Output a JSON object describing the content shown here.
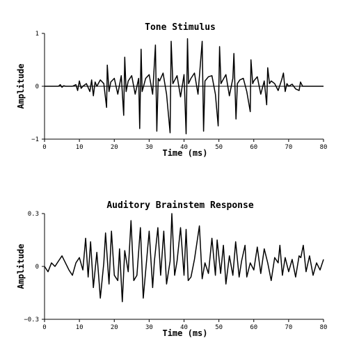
{
  "chart_data": [
    {
      "type": "line",
      "title": "Tone Stimulus",
      "xlabel": "Time (ms)",
      "ylabel": "Amplitude",
      "xlim": [
        0,
        80
      ],
      "ylim": [
        -1,
        1
      ],
      "xticks": [
        "0",
        "10",
        "20",
        "30",
        "40",
        "50",
        "60",
        "70",
        "80"
      ],
      "yticks": [
        "1",
        "0",
        "−1"
      ],
      "grid": false,
      "series": [
        {
          "x": [
            0,
            4,
            4.5,
            5,
            5.5,
            6,
            7,
            8,
            9,
            9.5,
            10,
            10.5,
            11,
            12,
            13,
            13.5,
            14,
            14.5,
            15,
            16,
            17,
            17.8,
            18,
            18.5,
            19,
            20,
            21,
            22,
            22.7,
            23,
            23.4,
            24,
            25,
            26,
            27,
            27.3,
            27.7,
            28,
            29,
            30,
            31,
            31.8,
            32.2,
            32.6,
            33,
            34,
            35,
            36,
            36.3,
            36.8,
            37.2,
            38,
            39,
            40,
            40.6,
            41,
            41.3,
            42,
            43,
            44,
            45.2,
            45.6,
            46,
            47,
            48,
            49,
            49.8,
            50.2,
            50.6,
            51,
            52,
            53,
            54,
            54.3,
            54.9,
            55.3,
            56,
            57,
            58,
            59,
            59.2,
            59.7,
            60,
            61,
            62,
            63,
            63.7,
            64,
            64.5,
            65,
            66,
            67,
            68,
            68.5,
            69,
            69.5,
            70,
            71,
            72,
            73,
            73.4,
            74,
            75,
            76,
            80
          ],
          "y": [
            0,
            0,
            0.03,
            -0.02,
            0.01,
            0,
            0,
            0,
            0.03,
            -0.08,
            0.1,
            -0.04,
            0,
            0.05,
            -0.1,
            0.12,
            -0.18,
            0.08,
            0,
            0.12,
            0.05,
            -0.4,
            0.4,
            -0.1,
            0.08,
            0.15,
            -0.15,
            0.2,
            -0.55,
            0.55,
            -0.1,
            0.1,
            0.2,
            -0.15,
            0.15,
            -0.8,
            0.7,
            -0.1,
            0.15,
            0.22,
            -0.15,
            0.78,
            -0.85,
            0.15,
            0.1,
            0.25,
            -0.15,
            -0.88,
            0.85,
            0.05,
            0.1,
            0.2,
            -0.2,
            0.22,
            -0.9,
            0.9,
            0.05,
            0.15,
            0.25,
            -0.15,
            0.85,
            -0.85,
            0.1,
            0.18,
            0.2,
            -0.15,
            -0.75,
            0.75,
            0.05,
            0.1,
            0.22,
            -0.18,
            0.15,
            0.62,
            -0.62,
            0.05,
            0.12,
            0.15,
            -0.1,
            -0.48,
            0.5,
            0.05,
            0.1,
            0.18,
            -0.15,
            0.1,
            -0.35,
            0.35,
            0.05,
            0.1,
            0.05,
            -0.08,
            0.12,
            0.25,
            -0.1,
            0.05,
            0,
            0.04,
            -0.05,
            -0.08,
            0.08,
            0,
            0,
            0,
            0
          ]
        }
      ]
    },
    {
      "type": "line",
      "title": "Auditory Brainstem Response",
      "xlabel": "Time (ms)",
      "ylabel": "Amplitude",
      "xlim": [
        0,
        80
      ],
      "ylim": [
        -0.3,
        0.3
      ],
      "xticks": [
        "0",
        "10",
        "20",
        "30",
        "40",
        "50",
        "60",
        "70",
        "80"
      ],
      "yticks": [
        "0.3",
        "0",
        "−0.3"
      ],
      "grid": false,
      "series": [
        {
          "x": [
            0,
            1,
            2,
            3,
            4,
            5,
            6,
            7,
            8,
            9,
            10,
            11,
            11.8,
            12.5,
            13.2,
            14,
            15,
            16,
            17,
            17.5,
            18.5,
            19.2,
            20,
            21,
            21.5,
            22.3,
            23,
            24,
            24.8,
            25.6,
            26.5,
            27.5,
            28.3,
            29.2,
            30,
            31,
            31.5,
            32.5,
            33.3,
            34.2,
            35,
            36,
            36.5,
            37.3,
            38,
            39,
            40,
            40.6,
            41.2,
            42,
            43,
            44.4,
            45.2,
            46,
            47,
            48,
            49,
            49.5,
            50.5,
            51.3,
            52,
            53,
            54,
            54.8,
            55.8,
            56.5,
            57.5,
            58,
            59,
            60,
            61,
            62,
            63,
            64,
            65,
            66,
            67,
            67.5,
            68.2,
            69,
            70,
            71,
            72,
            73,
            73.5,
            74.2,
            75,
            76,
            77,
            78,
            79,
            80
          ],
          "y": [
            0,
            -0.03,
            0.02,
            0,
            0.03,
            0.06,
            0.02,
            -0.02,
            -0.05,
            0.02,
            0.05,
            -0.02,
            0.16,
            -0.06,
            0.14,
            -0.12,
            0.08,
            -0.18,
            0.02,
            0.19,
            -0.1,
            0.2,
            -0.05,
            -0.08,
            0.1,
            -0.2,
            0.09,
            -0.03,
            0.26,
            -0.08,
            -0.05,
            0.22,
            -0.18,
            0.02,
            0.2,
            -0.12,
            0.03,
            0.22,
            -0.05,
            0.2,
            -0.1,
            0.03,
            0.3,
            -0.05,
            0.03,
            0.22,
            -0.05,
            0.21,
            -0.08,
            -0.06,
            0.04,
            0.23,
            -0.07,
            0.02,
            -0.04,
            0.16,
            -0.05,
            0.15,
            -0.04,
            0.12,
            -0.1,
            0.06,
            -0.05,
            0.14,
            -0.06,
            0.03,
            0.12,
            -0.06,
            0.02,
            -0.02,
            0.11,
            -0.04,
            0.1,
            0.02,
            -0.08,
            0.05,
            0.02,
            0.12,
            -0.05,
            0.05,
            -0.03,
            0.04,
            -0.06,
            0.06,
            0.05,
            0.12,
            -0.03,
            0.06,
            -0.05,
            0.02,
            -0.02,
            0.04
          ]
        }
      ]
    }
  ]
}
